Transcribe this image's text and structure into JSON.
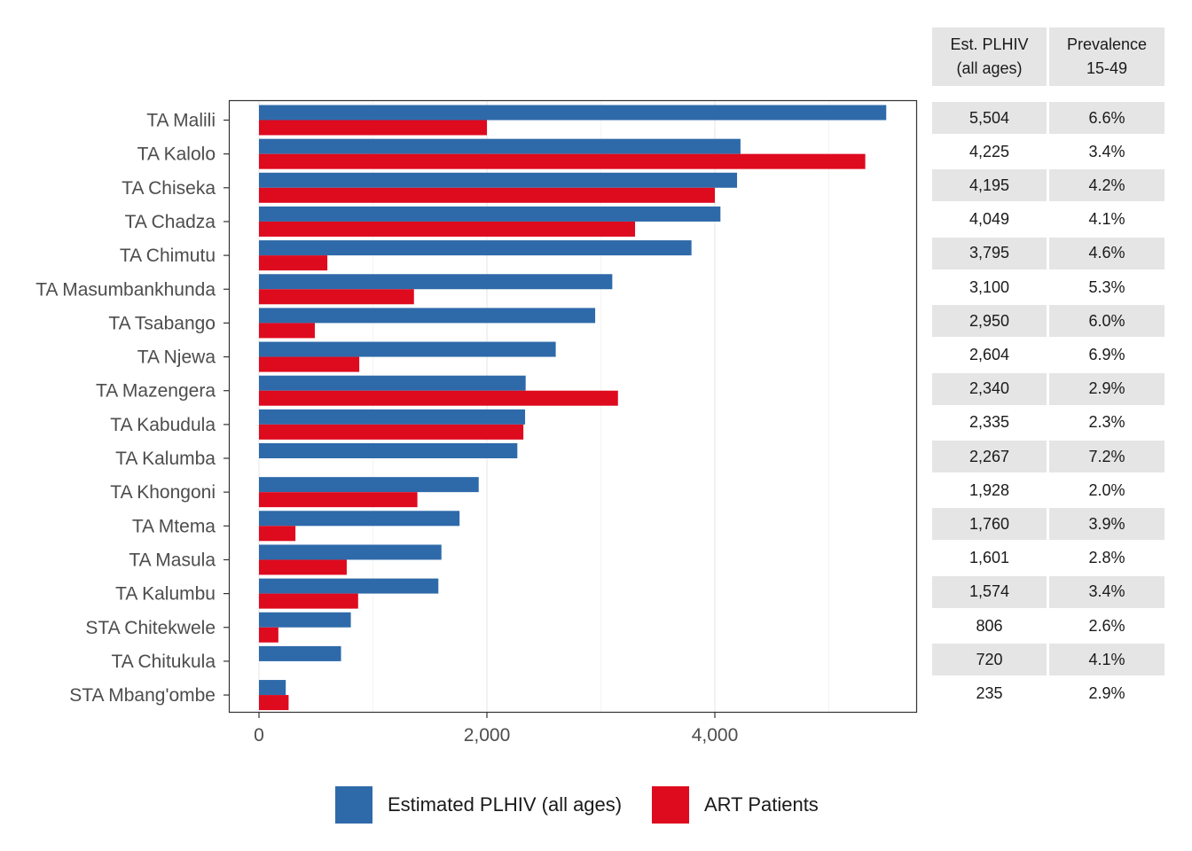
{
  "chart_data": {
    "type": "bar",
    "orientation": "horizontal",
    "categories": [
      "TA Malili",
      "TA Kalolo",
      "TA Chiseka",
      "TA Chadza",
      "TA Chimutu",
      "TA Masumbankhunda",
      "TA Tsabango",
      "TA Njewa",
      "TA Mazengera",
      "TA Kabudula",
      "TA Kalumba",
      "TA Khongoni",
      "TA Mtema",
      "TA Masula",
      "TA Kalumbu",
      "STA Chitekwele",
      "TA Chitukula",
      "STA Mbang'ombe"
    ],
    "series": [
      {
        "name": "Estimated PLHIV (all ages)",
        "color": "#2e6aa9",
        "values": [
          5504,
          4225,
          4195,
          4049,
          3795,
          3100,
          2950,
          2604,
          2340,
          2335,
          2267,
          1928,
          1760,
          1601,
          1574,
          806,
          720,
          235
        ]
      },
      {
        "name": "ART Patients",
        "color": "#de0a1e",
        "values": [
          2000,
          5320,
          4000,
          3300,
          600,
          1360,
          490,
          880,
          3150,
          2320,
          null,
          1390,
          320,
          770,
          870,
          170,
          null,
          260
        ]
      }
    ],
    "xlim": [
      -270,
      5780
    ],
    "x_ticks": [
      0,
      2000,
      4000
    ],
    "x_tick_labels": [
      "0",
      "2,000",
      "4,000"
    ],
    "grid": true,
    "legend_position": "bottom"
  },
  "table": {
    "headers": [
      {
        "line1": "Est. PLHIV",
        "line2": "(all ages)"
      },
      {
        "line1": "Prevalence",
        "line2": "15-49"
      }
    ],
    "rows": [
      [
        "5,504",
        "6.6%"
      ],
      [
        "4,225",
        "3.4%"
      ],
      [
        "4,195",
        "4.2%"
      ],
      [
        "4,049",
        "4.1%"
      ],
      [
        "3,795",
        "4.6%"
      ],
      [
        "3,100",
        "5.3%"
      ],
      [
        "2,950",
        "6.0%"
      ],
      [
        "2,604",
        "6.9%"
      ],
      [
        "2,340",
        "2.9%"
      ],
      [
        "2,335",
        "2.3%"
      ],
      [
        "2,267",
        "7.2%"
      ],
      [
        "1,928",
        "2.0%"
      ],
      [
        "1,760",
        "3.9%"
      ],
      [
        "1,601",
        "2.8%"
      ],
      [
        "1,574",
        "3.4%"
      ],
      [
        "806",
        "2.6%"
      ],
      [
        "720",
        "4.1%"
      ],
      [
        "235",
        "2.9%"
      ]
    ]
  }
}
